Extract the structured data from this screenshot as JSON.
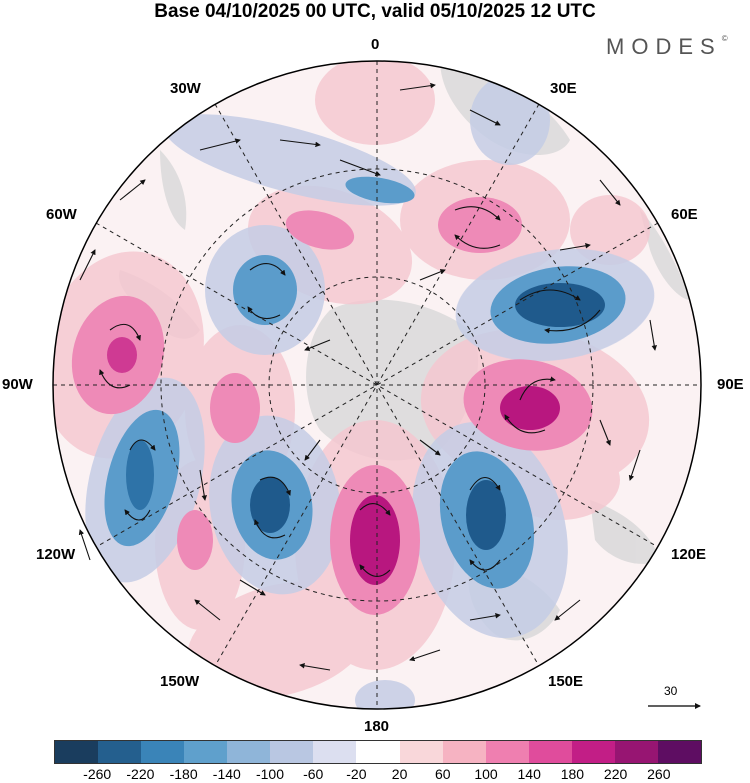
{
  "title": "Base 04/10/2025 00 UTC, valid 05/10/2025 12 UTC",
  "brand": "MODES",
  "brand_mark": "©",
  "longitude_labels": {
    "lon_0": "0",
    "lon_30e": "30E",
    "lon_60e": "60E",
    "lon_90e": "90E",
    "lon_120e": "120E",
    "lon_150e": "150E",
    "lon_180": "180",
    "lon_150w": "150W",
    "lon_120w": "120W",
    "lon_90w": "90W",
    "lon_60w": "60W",
    "lon_30w": "30W"
  },
  "reference_vector": {
    "label": "30"
  },
  "colorbar": {
    "colors": [
      "#1a3d5e",
      "#245f8e",
      "#3a84b8",
      "#5fa0cc",
      "#8fb5d9",
      "#b9c7e2",
      "#dcdff0",
      "#ffffff",
      "#f9d7da",
      "#f6b3c2",
      "#ef7fb0",
      "#e04c9c",
      "#c21e86",
      "#971572",
      "#5e0d62"
    ],
    "tick_labels": [
      "-260",
      "-220",
      "-180",
      "-140",
      "-100",
      "-60",
      "-20",
      "20",
      "60",
      "100",
      "140",
      "180",
      "220",
      "260"
    ]
  },
  "colors": {
    "negative_strong": "#1f5a8c",
    "negative_mid": "#5b9ccb",
    "negative_weak": "#c4cde6",
    "positive_weak": "#f7cfd4",
    "positive_mid": "#ee86b4",
    "positive_strong": "#b8177f",
    "land": "#d9d9d9"
  }
}
